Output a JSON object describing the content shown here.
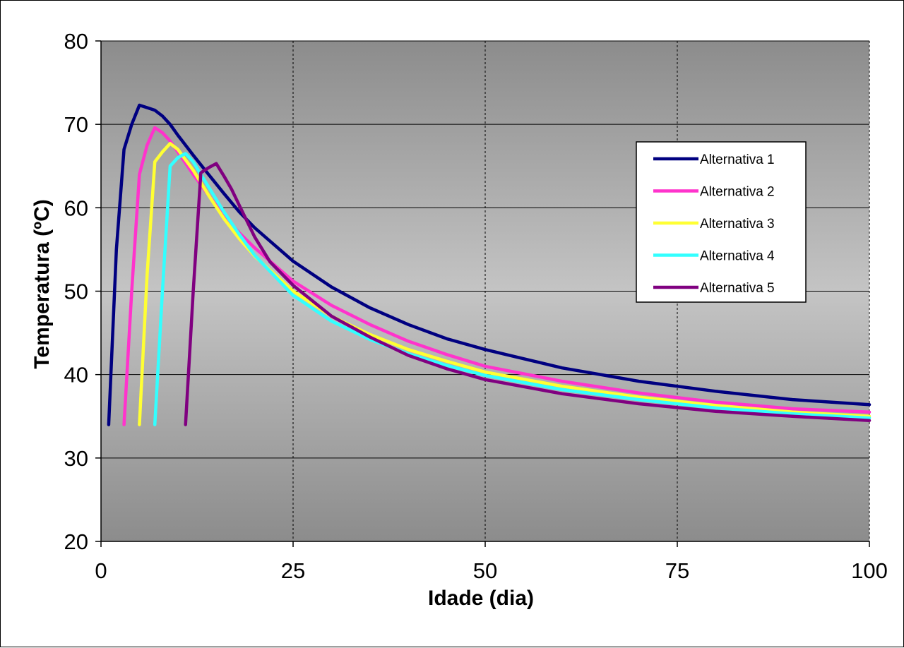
{
  "chart_data": {
    "type": "line",
    "title": "",
    "xlabel": "Idade (dia)",
    "ylabel": "Temperatura (ºC)",
    "xlim": [
      0,
      100
    ],
    "ylim": [
      20,
      80
    ],
    "xticks": [
      0,
      25,
      50,
      75,
      100
    ],
    "yticks": [
      20,
      30,
      40,
      50,
      60,
      70,
      80
    ],
    "grid": "major, dashed vertical, solid horizontal",
    "plot_background": "gradient dark grey to light grey to dark grey",
    "legend_position": "right",
    "series": [
      {
        "name": "Alternativa 1",
        "color": "#000080",
        "points": [
          [
            1,
            34
          ],
          [
            2,
            55
          ],
          [
            3,
            67
          ],
          [
            4,
            70
          ],
          [
            5,
            72.3
          ],
          [
            6,
            72
          ],
          [
            7,
            71.7
          ],
          [
            8,
            71
          ],
          [
            9,
            70
          ],
          [
            10,
            68.7
          ],
          [
            12,
            66.3
          ],
          [
            14,
            64
          ],
          [
            16,
            61.7
          ],
          [
            18,
            59.5
          ],
          [
            20,
            57.6
          ],
          [
            25,
            53.6
          ],
          [
            30,
            50.5
          ],
          [
            35,
            48
          ],
          [
            40,
            46
          ],
          [
            45,
            44.3
          ],
          [
            50,
            43
          ],
          [
            60,
            40.8
          ],
          [
            70,
            39.2
          ],
          [
            80,
            38
          ],
          [
            90,
            37
          ],
          [
            100,
            36.4
          ]
        ]
      },
      {
        "name": "Alternativa 2",
        "color": "#FF33CC",
        "points": [
          [
            3,
            34
          ],
          [
            4,
            50
          ],
          [
            5,
            64
          ],
          [
            6,
            67.5
          ],
          [
            7,
            69.6
          ],
          [
            8,
            69
          ],
          [
            9,
            68
          ],
          [
            10,
            66.7
          ],
          [
            12,
            64
          ],
          [
            14,
            61.5
          ],
          [
            16,
            59
          ],
          [
            18,
            57
          ],
          [
            20,
            55.2
          ],
          [
            25,
            51.2
          ],
          [
            30,
            48.3
          ],
          [
            35,
            46
          ],
          [
            40,
            44
          ],
          [
            45,
            42.4
          ],
          [
            50,
            41
          ],
          [
            60,
            39.2
          ],
          [
            70,
            37.8
          ],
          [
            80,
            36.7
          ],
          [
            90,
            35.9
          ],
          [
            100,
            35.5
          ]
        ]
      },
      {
        "name": "Alternativa 3",
        "color": "#FFFF33",
        "points": [
          [
            5,
            34
          ],
          [
            6,
            52
          ],
          [
            7,
            65.5
          ],
          [
            8,
            66.7
          ],
          [
            9,
            67.7
          ],
          [
            10,
            67
          ],
          [
            12,
            64.5
          ],
          [
            14,
            61.5
          ],
          [
            16,
            58.7
          ],
          [
            18,
            56.3
          ],
          [
            20,
            54.2
          ],
          [
            25,
            50
          ],
          [
            30,
            47
          ],
          [
            35,
            44.8
          ],
          [
            40,
            43
          ],
          [
            45,
            41.6
          ],
          [
            50,
            40.3
          ],
          [
            60,
            38.6
          ],
          [
            70,
            37.3
          ],
          [
            80,
            36.3
          ],
          [
            90,
            35.5
          ],
          [
            100,
            35
          ]
        ]
      },
      {
        "name": "Alternativa 4",
        "color": "#33FFFF",
        "points": [
          [
            7,
            34
          ],
          [
            8,
            50
          ],
          [
            9,
            65
          ],
          [
            10,
            66
          ],
          [
            11,
            66.5
          ],
          [
            12,
            65.5
          ],
          [
            14,
            62.5
          ],
          [
            16,
            59.5
          ],
          [
            18,
            56.8
          ],
          [
            20,
            54.3
          ],
          [
            25,
            49.5
          ],
          [
            30,
            46.4
          ],
          [
            35,
            44.2
          ],
          [
            40,
            42.5
          ],
          [
            45,
            41.1
          ],
          [
            50,
            39.9
          ],
          [
            60,
            38.2
          ],
          [
            70,
            37
          ],
          [
            80,
            36
          ],
          [
            90,
            35.3
          ],
          [
            100,
            34.8
          ]
        ]
      },
      {
        "name": "Alternativa 5",
        "color": "#800080",
        "points": [
          [
            11,
            34
          ],
          [
            12,
            50
          ],
          [
            13,
            64.2
          ],
          [
            14,
            64.8
          ],
          [
            15,
            65.3
          ],
          [
            16,
            63.8
          ],
          [
            17,
            62.2
          ],
          [
            18,
            60.3
          ],
          [
            20,
            56.5
          ],
          [
            22,
            53.5
          ],
          [
            25,
            50.7
          ],
          [
            30,
            47
          ],
          [
            35,
            44.5
          ],
          [
            40,
            42.3
          ],
          [
            45,
            40.7
          ],
          [
            50,
            39.4
          ],
          [
            60,
            37.7
          ],
          [
            70,
            36.5
          ],
          [
            80,
            35.6
          ],
          [
            90,
            35
          ],
          [
            100,
            34.5
          ]
        ]
      }
    ]
  }
}
